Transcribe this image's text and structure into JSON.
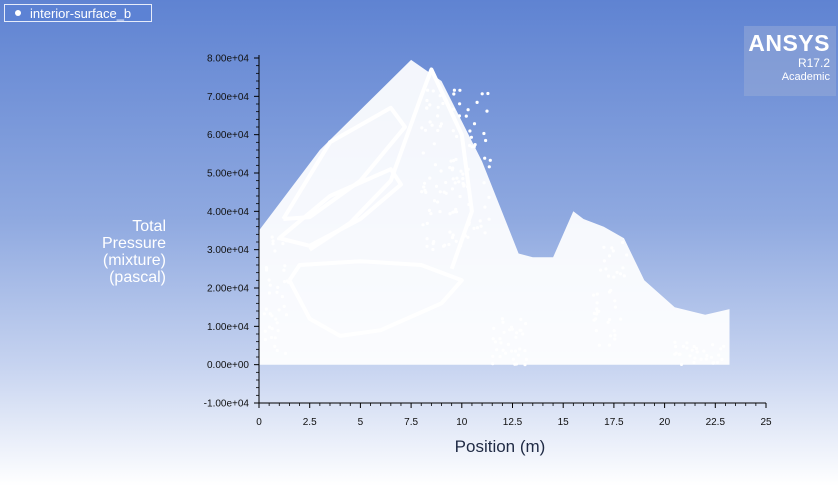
{
  "legend": {
    "label": "interior-surface_b"
  },
  "logo": {
    "brand": "ANSYS",
    "version": "R17.2",
    "edition": "Academic"
  },
  "chart_data": {
    "type": "scatter",
    "title": "",
    "xlabel": "Position (m)",
    "ylabel_lines": [
      "Total",
      "Pressure",
      "(mixture)",
      "(pascal)"
    ],
    "xlim": [
      0,
      25
    ],
    "ylim": [
      -10000,
      80000
    ],
    "x_ticks": [
      0,
      2.5,
      5,
      7.5,
      10,
      12.5,
      15,
      17.5,
      20,
      22.5,
      25
    ],
    "x_tick_labels": [
      "0",
      "2.5",
      "5",
      "7.5",
      "10",
      "12.5",
      "15",
      "17.5",
      "20",
      "22.5",
      "25"
    ],
    "y_ticks": [
      -10000,
      0,
      10000,
      20000,
      30000,
      40000,
      50000,
      60000,
      70000,
      80000
    ],
    "y_tick_labels": [
      "-1.00e+04",
      "0.00e+00",
      "1.00e+04",
      "2.00e+04",
      "3.00e+04",
      "4.00e+04",
      "5.00e+04",
      "6.00e+04",
      "7.00e+04",
      "8.00e+04"
    ],
    "marker_color": "#ffffff",
    "regions": [
      {
        "name": "envelope",
        "points": [
          [
            0,
            35000
          ],
          [
            3,
            56000
          ],
          [
            7.5,
            79500
          ],
          [
            9,
            74000
          ],
          [
            11,
            53000
          ],
          [
            12.8,
            29000
          ],
          [
            13.5,
            28000
          ],
          [
            14.5,
            28000
          ],
          [
            15.5,
            40000
          ],
          [
            16,
            38000
          ],
          [
            17,
            36000
          ],
          [
            18,
            33000
          ],
          [
            19,
            22000
          ],
          [
            20.5,
            15000
          ],
          [
            22,
            13000
          ],
          [
            23.2,
            14500
          ],
          [
            23.2,
            0
          ],
          [
            0,
            0
          ]
        ]
      }
    ],
    "loops": [
      {
        "name": "upper-loop",
        "points": [
          [
            1.2,
            38000
          ],
          [
            3.5,
            58000
          ],
          [
            6.5,
            67000
          ],
          [
            7.2,
            62000
          ],
          [
            5,
            48000
          ],
          [
            2.5,
            38500
          ],
          [
            1.2,
            38000
          ]
        ]
      },
      {
        "name": "middle-loop",
        "points": [
          [
            1,
            33000
          ],
          [
            3.5,
            44000
          ],
          [
            6.5,
            51000
          ],
          [
            7,
            47000
          ],
          [
            5,
            38000
          ],
          [
            2.5,
            31000
          ],
          [
            1,
            33000
          ]
        ]
      },
      {
        "name": "lower-loop",
        "points": [
          [
            1.5,
            22000
          ],
          [
            2.5,
            12000
          ],
          [
            4,
            7500
          ],
          [
            6,
            9000
          ],
          [
            9,
            16000
          ],
          [
            10,
            22000
          ],
          [
            8,
            26000
          ],
          [
            5,
            27000
          ],
          [
            2,
            26000
          ],
          [
            1.5,
            22000
          ]
        ]
      },
      {
        "name": "top-curve",
        "points": [
          [
            2.5,
            30000
          ],
          [
            4.5,
            37000
          ],
          [
            6.5,
            48000
          ],
          [
            8,
            70000
          ],
          [
            8.5,
            77000
          ],
          [
            10,
            60000
          ],
          [
            10.5,
            40000
          ],
          [
            9.5,
            25000
          ]
        ]
      }
    ],
    "clusters": [
      {
        "x_range": [
          8,
          11.5
        ],
        "y_range": [
          30000,
          72000
        ],
        "count": 120
      },
      {
        "x_range": [
          0.2,
          1.5
        ],
        "y_range": [
          2000,
          34000
        ],
        "count": 40
      },
      {
        "x_range": [
          16.5,
          18.2
        ],
        "y_range": [
          5000,
          32000
        ],
        "count": 40
      },
      {
        "x_range": [
          20.5,
          23
        ],
        "y_range": [
          0,
          6000
        ],
        "count": 30
      },
      {
        "x_range": [
          11.5,
          13.2
        ],
        "y_range": [
          0,
          12000
        ],
        "count": 35
      }
    ]
  }
}
